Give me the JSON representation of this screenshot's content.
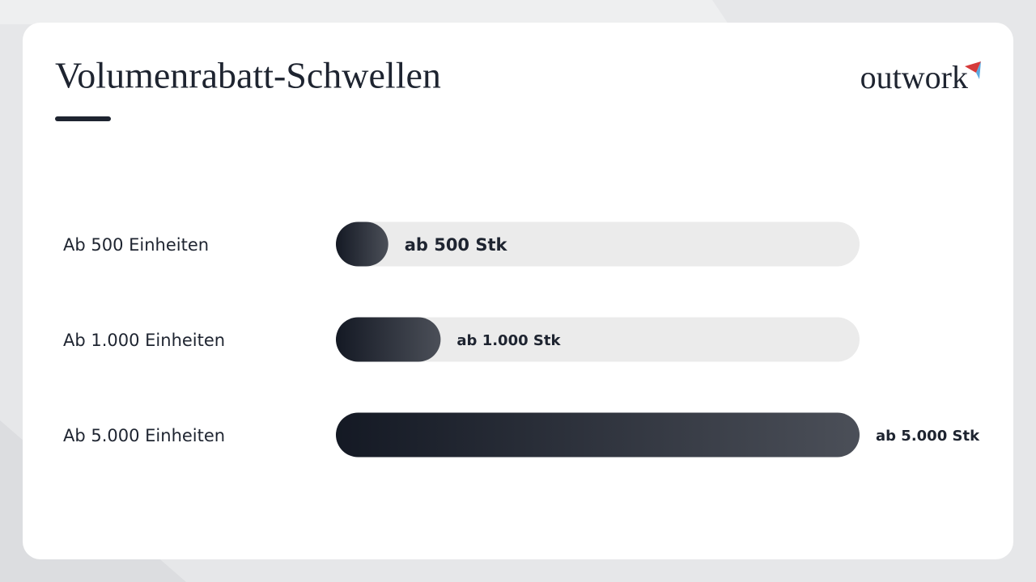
{
  "logo": "outwork",
  "chart_data": {
    "type": "bar",
    "orientation": "horizontal",
    "title": "Volumenrabatt-Schwellen",
    "categories": [
      "Ab 500 Einheiten",
      "Ab 1.000 Einheiten",
      "Ab 5.000 Einheiten"
    ],
    "values": [
      500,
      1000,
      5000
    ],
    "value_labels": [
      "ab 500 Stk",
      "ab 1.000 Stk",
      "ab 5.000 Stk"
    ],
    "color": "#1b202b",
    "track_color": "#ebebeb"
  }
}
